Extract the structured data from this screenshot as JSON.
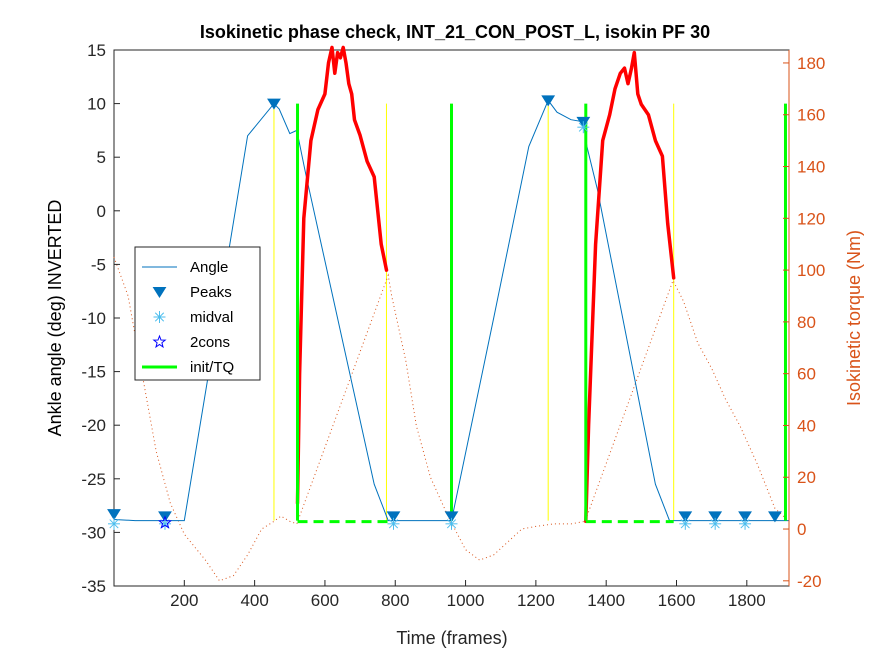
{
  "chart_data": {
    "type": "line",
    "title": "Isokinetic phase check, INT_21_CON_POST_L, isokin PF 30",
    "xlabel": "Time (frames)",
    "ylabel_left": "Ankle angle (deg) INVERTED",
    "ylabel_right": "Isokinetic torque (Nm)",
    "xlim": [
      0,
      1920
    ],
    "ylim_left": [
      -35,
      15
    ],
    "ylim_right": [
      -22,
      185
    ],
    "x_ticks": [
      "200",
      "400",
      "600",
      "800",
      "1000",
      "1200",
      "1400",
      "1600",
      "1800"
    ],
    "y_ticks_left": [
      "15",
      "10",
      "5",
      "0",
      "-5",
      "-10",
      "-15",
      "-20",
      "-25",
      "-30",
      "-35"
    ],
    "y_ticks_right": [
      "180",
      "160",
      "140",
      "120",
      "100",
      "80",
      "60",
      "40",
      "20",
      "0",
      "-20"
    ],
    "grid": false,
    "legend_position": "center-left",
    "colors": {
      "angle": "#0072bd",
      "torque_dotted": "#d95319",
      "torque_isokinetic": "#ff0000",
      "init_tq": "#00ff00",
      "yellow_markers": "#ffff00",
      "midval": "#4dbeee",
      "peaks": "#0072bd",
      "cons": "#0000ff",
      "right_axis": "#d95319"
    },
    "legend": [
      {
        "key": "angle",
        "label": "Angle"
      },
      {
        "key": "peaks",
        "label": "Peaks"
      },
      {
        "key": "midval",
        "label": "midval"
      },
      {
        "key": "cons",
        "label": "2cons"
      },
      {
        "key": "init",
        "label": "init/TQ"
      }
    ],
    "series": [
      {
        "key": "angle",
        "axis": "left",
        "x": [
          0,
          60,
          200,
          290,
          380,
          455,
          470,
          500,
          520,
          545,
          740,
          780,
          960,
          1080,
          1180,
          1235,
          1260,
          1300,
          1335,
          1345,
          1375,
          1540,
          1580,
          1920
        ],
        "y": [
          -28.8,
          -28.9,
          -28.9,
          -11,
          7,
          10,
          9.5,
          7.2,
          7.5,
          3.5,
          -25.5,
          -28.9,
          -28.9,
          -10,
          6,
          10.3,
          9.2,
          8.5,
          8.3,
          6,
          2,
          -25.5,
          -28.9,
          -28.9
        ]
      },
      {
        "key": "torque_dotted",
        "axis": "right",
        "x": [
          0,
          40,
          80,
          120,
          160,
          200,
          260,
          300,
          340,
          380,
          420,
          455,
          475,
          500,
          520,
          780,
          790,
          830,
          860,
          900,
          950,
          1000,
          1040,
          1080,
          1120,
          1160,
          1200,
          1250,
          1300,
          1340,
          1590,
          1620,
          1660,
          1700,
          1740,
          1780,
          1830,
          1880,
          1920
        ],
        "y": [
          105,
          90,
          60,
          30,
          10,
          -2,
          -12,
          -20,
          -18,
          -10,
          0,
          3,
          5,
          3,
          2,
          98,
          90,
          65,
          40,
          20,
          5,
          -8,
          -12,
          -10,
          -5,
          0,
          1,
          2,
          2,
          3,
          96,
          88,
          72,
          62,
          50,
          40,
          25,
          8,
          3
        ]
      },
      {
        "key": "torque_isokinetic",
        "axis": "right",
        "x": [
          522,
          528,
          540,
          560,
          580,
          600,
          610,
          620,
          628,
          636,
          644,
          652,
          660,
          668,
          676,
          684,
          700,
          720,
          740,
          760,
          775
        ],
        "y": [
          10,
          60,
          120,
          150,
          162,
          168,
          180,
          186,
          176,
          184,
          182,
          186,
          180,
          172,
          168,
          158,
          152,
          142,
          136,
          110,
          100
        ]
      },
      {
        "key": "torque_isokinetic",
        "axis": "right",
        "x": [
          1342,
          1350,
          1370,
          1390,
          1410,
          1425,
          1440,
          1452,
          1462,
          1472,
          1480,
          1490,
          1500,
          1520,
          1540,
          1560,
          1575,
          1592
        ],
        "y": [
          3,
          40,
          110,
          150,
          160,
          170,
          176,
          178,
          172,
          178,
          184,
          168,
          164,
          160,
          150,
          144,
          118,
          97
        ]
      }
    ],
    "peaks": {
      "x": [
        0,
        145,
        455,
        795,
        960,
        1235,
        1335,
        1625,
        1710,
        1795,
        1880
      ],
      "y": [
        -28.3,
        -28.5,
        10,
        -28.5,
        -28.5,
        10.3,
        8.3,
        -28.5,
        -28.5,
        -28.5,
        -28.5
      ]
    },
    "midval": {
      "x": [
        0,
        145,
        795,
        960,
        1335,
        1625,
        1710,
        1795
      ],
      "y": [
        -29.2,
        -29.2,
        -29.2,
        -29.2,
        7.8,
        -29.2,
        -29.2,
        -29.2
      ]
    },
    "cons": {
      "x": [
        145
      ],
      "y": [
        -29.1
      ]
    },
    "init_tq_vertical": {
      "x": [
        522,
        960,
        1342,
        1910
      ],
      "y_top": [
        10,
        10,
        10,
        10
      ],
      "y_bottom": [
        -28.9,
        -28.9,
        -28.9,
        -28.9
      ]
    },
    "init_tq_dashed": [
      {
        "x": [
          522,
          780
        ],
        "y": -29.0
      },
      {
        "x": [
          1342,
          1592
        ],
        "y": -29.0
      }
    ],
    "yellow_vertical": {
      "x": [
        455,
        775,
        1235,
        1592
      ],
      "y_top": [
        10,
        10,
        10,
        10
      ],
      "y_bottom": [
        -28.9,
        -28.9,
        -28.9,
        -28.9
      ]
    }
  }
}
